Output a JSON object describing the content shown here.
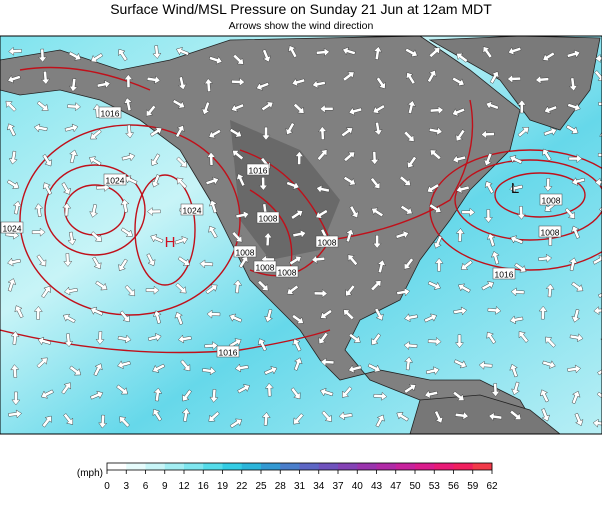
{
  "header": {
    "title": "Surface Wind/MSL Pressure on Sunday 21 Jun at 12am MDT",
    "subtitle": "Arrows show the wind direction"
  },
  "map": {
    "isobar_labels": [
      1016,
      1024,
      1024,
      1024,
      1016,
      1008,
      1008,
      1008,
      1008,
      1008,
      1016,
      1008,
      1008,
      1016
    ],
    "pressure_centers": [
      "H",
      "L"
    ]
  },
  "legend": {
    "unit": "(mph)",
    "ticks": [
      0,
      3,
      6,
      9,
      12,
      16,
      19,
      22,
      25,
      28,
      31,
      34,
      37,
      40,
      43,
      47,
      50,
      53,
      56,
      59,
      62
    ],
    "colors": [
      "#ffffff",
      "#e6fbfb",
      "#c8f5f7",
      "#a3eef3",
      "#7fe6ef",
      "#55dcea",
      "#33cce4",
      "#2bb5da",
      "#3399d2",
      "#4a7ecb",
      "#5d66c4",
      "#6f52bd",
      "#8442b5",
      "#9a34ad",
      "#b02aa6",
      "#c7229c",
      "#da1c8c",
      "#e81a76",
      "#f01f5e",
      "#f23a4a"
    ]
  }
}
